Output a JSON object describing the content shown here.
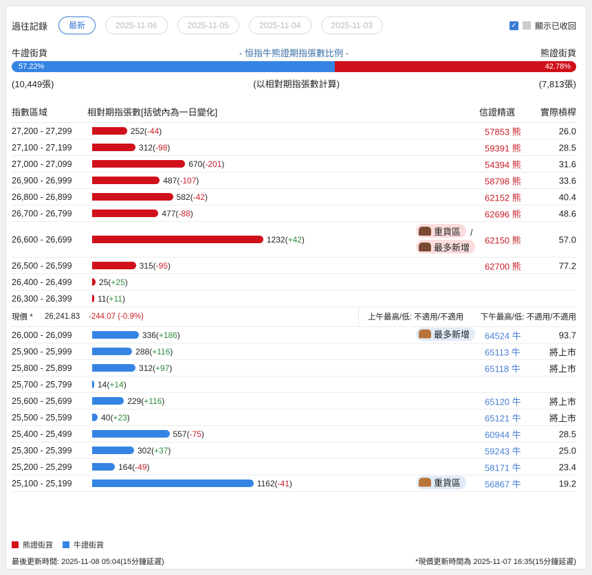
{
  "history": {
    "label": "過往記錄",
    "chips": [
      "最新",
      "2025-11-06",
      "2025-11-05",
      "2025-11-04",
      "2025-11-03"
    ],
    "show_recalled": "顯示已收回",
    "show_recalled_checked": true
  },
  "ratio": {
    "left_label": "牛證街貨",
    "title": "- 恒指牛熊證期指張數比例 -",
    "right_label": "熊證街貨",
    "bull_pct": "57.22%",
    "bear_pct": "42.78%",
    "bull_fraction": 0.5722,
    "bull_count": "(10,449張)",
    "note": "(以相對期指張數計算)",
    "bear_count": "(7,813張)"
  },
  "table": {
    "headers": [
      "指數區域",
      "相對期指張數[括號內為一日變化]",
      "信證精選",
      "實際槓桿"
    ]
  },
  "colors": {
    "bear": "#d0111b",
    "bull": "#3584e4",
    "bear_text": "#c8202a",
    "bull_text": "#4a7fd4"
  },
  "bear_rows": [
    {
      "range": "27,200 - 27,299",
      "qty": 252,
      "chg": "-44",
      "warrant": "57853 熊",
      "lev": "26.0"
    },
    {
      "range": "27,100 - 27,199",
      "qty": 312,
      "chg": "-98",
      "warrant": "59391 熊",
      "lev": "28.5"
    },
    {
      "range": "27,000 - 27,099",
      "qty": 670,
      "chg": "-201",
      "warrant": "54394 熊",
      "lev": "31.6"
    },
    {
      "range": "26,900 - 26,999",
      "qty": 487,
      "chg": "-107",
      "warrant": "58798 熊",
      "lev": "33.6"
    },
    {
      "range": "26,800 - 26,899",
      "qty": 582,
      "chg": "-42",
      "warrant": "62152 熊",
      "lev": "40.4"
    },
    {
      "range": "26,700 - 26,799",
      "qty": 477,
      "chg": "-88",
      "warrant": "62696 熊",
      "lev": "48.6"
    },
    {
      "range": "26,600 - 26,699",
      "qty": 1232,
      "chg": "+42",
      "warrant": "62150 熊",
      "lev": "57.0",
      "badges": [
        "重貨區",
        "最多新增"
      ],
      "sep": "/"
    },
    {
      "range": "26,500 - 26,599",
      "qty": 315,
      "chg": "-95",
      "warrant": "62700 熊",
      "lev": "77.2"
    },
    {
      "range": "26,400 - 26,499",
      "qty": 25,
      "chg": "+25",
      "warrant": "",
      "lev": ""
    },
    {
      "range": "26,300 - 26,399",
      "qty": 11,
      "chg": "+11",
      "warrant": "",
      "lev": ""
    }
  ],
  "price": {
    "label": "現價 *",
    "value": "26,241.83",
    "change": "-244.07 (-0.9%)",
    "am": "上午最高/低: 不適用/不適用",
    "pm": "下午最高/低: 不適用/不適用"
  },
  "bull_rows": [
    {
      "range": "26,000 - 26,099",
      "qty": 336,
      "chg": "+186",
      "warrant": "64524 牛",
      "lev": "93.7",
      "badges": [
        "最多新增"
      ]
    },
    {
      "range": "25,900 - 25,999",
      "qty": 288,
      "chg": "+116",
      "warrant": "65113 牛",
      "lev": "將上市"
    },
    {
      "range": "25,800 - 25,899",
      "qty": 312,
      "chg": "+97",
      "warrant": "65118 牛",
      "lev": "將上市"
    },
    {
      "range": "25,700 - 25,799",
      "qty": 14,
      "chg": "+14",
      "warrant": "",
      "lev": ""
    },
    {
      "range": "25,600 - 25,699",
      "qty": 229,
      "chg": "+116",
      "warrant": "65120 牛",
      "lev": "將上市"
    },
    {
      "range": "25,500 - 25,599",
      "qty": 40,
      "chg": "+23",
      "warrant": "65121 牛",
      "lev": "將上市"
    },
    {
      "range": "25,400 - 25,499",
      "qty": 557,
      "chg": "-75",
      "warrant": "60944 牛",
      "lev": "28.5"
    },
    {
      "range": "25,300 - 25,399",
      "qty": 302,
      "chg": "+37",
      "warrant": "59243 牛",
      "lev": "25.0"
    },
    {
      "range": "25,200 - 25,299",
      "qty": 164,
      "chg": "-49",
      "warrant": "58171 牛",
      "lev": "23.4"
    },
    {
      "range": "25,100 - 25,199",
      "qty": 1162,
      "chg": "-41",
      "warrant": "56867 牛",
      "lev": "19.2",
      "badges": [
        "重貨區"
      ]
    }
  ],
  "legend": {
    "bear": "熊證街貨",
    "bull": "牛證街貨"
  },
  "footer": {
    "updated": "最後更新時間: 2025-11-08 05:04(15分鐘延遲)",
    "price_updated": "*現價更新時間為 2025-11-07 16:35(15分鐘延遲)"
  }
}
